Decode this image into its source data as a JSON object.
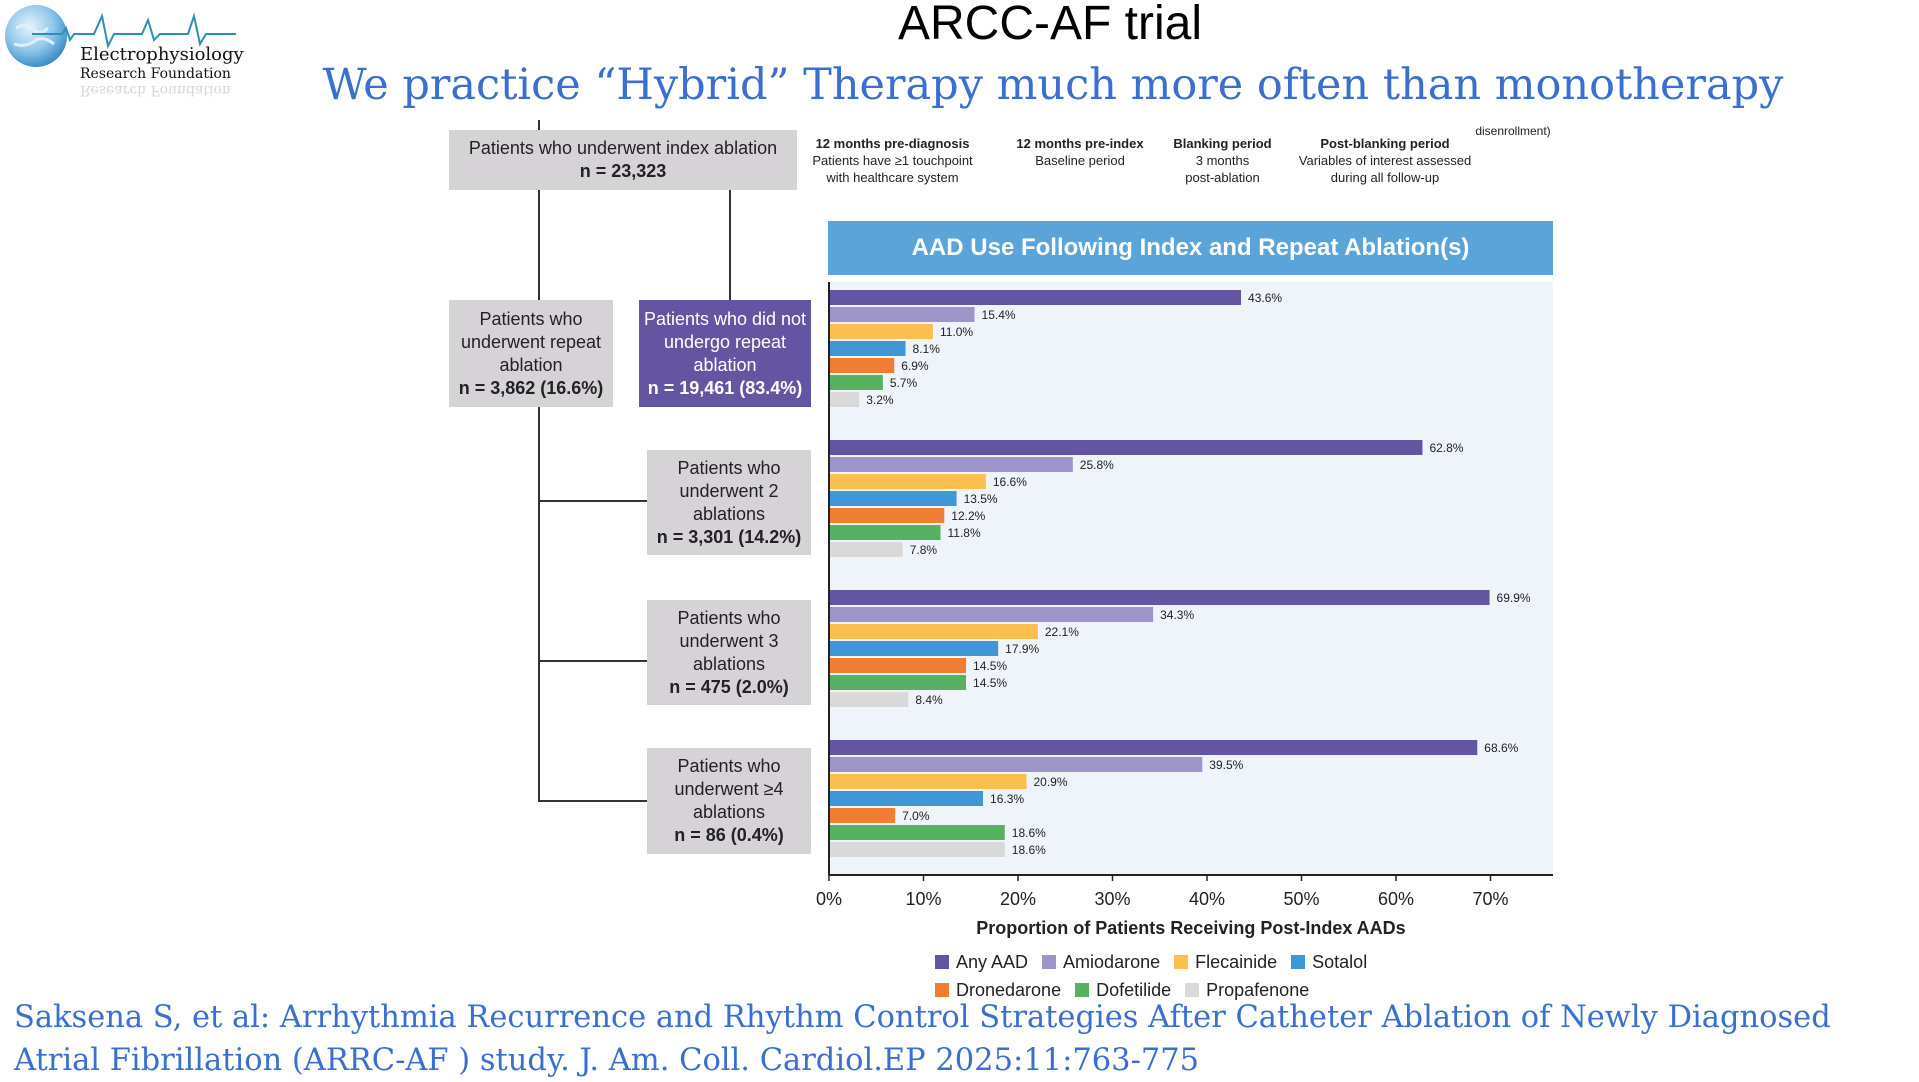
{
  "logo": {
    "name": "Electrophysiology",
    "sub": "Research Foundation"
  },
  "slide": {
    "title": "ARCC-AF trial",
    "subtitle": "We practice “Hybrid” Therapy much more often than monotherapy",
    "citation_line1": "Saksena S, et al: Arrhythmia Recurrence and Rhythm Control Strategies After Catheter Ablation of Newly Diagnosed",
    "citation_line2": "Atrial Fibrillation (ARRC-AF ) study. J. Am. Coll. Cardiol.EP 2025:11:763-775"
  },
  "flow": {
    "top": {
      "label": "Patients who underwent index ablation",
      "n": "n = 23,323"
    },
    "repeat": {
      "label": "Patients who underwent repeat ablation",
      "n": "n = 3,862 (16.6%)"
    },
    "no_repeat": {
      "label": "Patients who did not undergo repeat ablation",
      "n": "n = 19,461 (83.4%)"
    },
    "two": {
      "label": "Patients who underwent 2 ablations",
      "n": "n = 3,301 (14.2%)"
    },
    "three": {
      "label": "Patients who underwent 3 ablations",
      "n": "n = 475 (2.0%)"
    },
    "four": {
      "label": "Patients who underwent ≥4 ablations",
      "n": "n = 86 (0.4%)"
    }
  },
  "timeline": {
    "disenroll": "disenrollment)",
    "p1": {
      "title": "12 months pre-diagnosis",
      "l2": "Patients have ≥1 touchpoint",
      "l3": "with healthcare system"
    },
    "p2": {
      "title": "12 months pre-index",
      "l2": "Baseline period"
    },
    "p3": {
      "title": "Blanking period",
      "l2": "3 months",
      "l3": "post-ablation"
    },
    "p4": {
      "title": "Post-blanking period",
      "l2": "Variables of interest assessed",
      "l3": "during all follow-up"
    }
  },
  "chart_data": {
    "type": "bar",
    "orientation": "horizontal",
    "title": "AAD Use Following Index and Repeat Ablation(s)",
    "xlabel": "Proportion of Patients Receiving Post-Index AADs",
    "xlim": [
      0,
      70
    ],
    "xticks": [
      "0%",
      "10%",
      "20%",
      "30%",
      "40%",
      "50%",
      "60%",
      "70%"
    ],
    "categories": [
      "Patients who did not undergo repeat ablation",
      "Patients who underwent 2 ablations",
      "Patients who underwent 3 ablations",
      "Patients who underwent ≥4 ablations"
    ],
    "series": [
      {
        "name": "Any AAD",
        "color": "#6455a3",
        "values": [
          43.6,
          62.8,
          69.9,
          68.6
        ]
      },
      {
        "name": "Amiodarone",
        "color": "#9d94c9",
        "values": [
          15.4,
          25.8,
          34.3,
          39.5
        ]
      },
      {
        "name": "Flecainide",
        "color": "#fbbf4f",
        "values": [
          11.0,
          16.6,
          22.1,
          20.9
        ]
      },
      {
        "name": "Sotalol",
        "color": "#3f97d7",
        "values": [
          8.1,
          13.5,
          17.9,
          16.3
        ]
      },
      {
        "name": "Dronedarone",
        "color": "#ef7d32",
        "values": [
          6.9,
          12.2,
          14.5,
          7.0
        ]
      },
      {
        "name": "Dofetilide",
        "color": "#56b162",
        "values": [
          5.7,
          11.8,
          14.5,
          18.6
        ]
      },
      {
        "name": "Propafenone",
        "color": "#d9d9d9",
        "values": [
          3.2,
          7.8,
          8.4,
          18.6
        ]
      }
    ],
    "data_labels": [
      [
        "43.6%",
        "15.4%",
        "11.0%",
        "8.1%",
        "6.9%",
        "5.7%",
        "3.2%"
      ],
      [
        "62.8%",
        "25.8%",
        "16.6%",
        "13.5%",
        "12.2%",
        "11.8%",
        "7.8%"
      ],
      [
        "69.9%",
        "34.3%",
        "22.1%",
        "17.9%",
        "14.5%",
        "14.5%",
        "8.4%"
      ],
      [
        "68.6%",
        "39.5%",
        "20.9%",
        "16.3%",
        "7.0%",
        "18.6%",
        "18.6%"
      ]
    ],
    "legend": "bottom",
    "grid": false
  }
}
